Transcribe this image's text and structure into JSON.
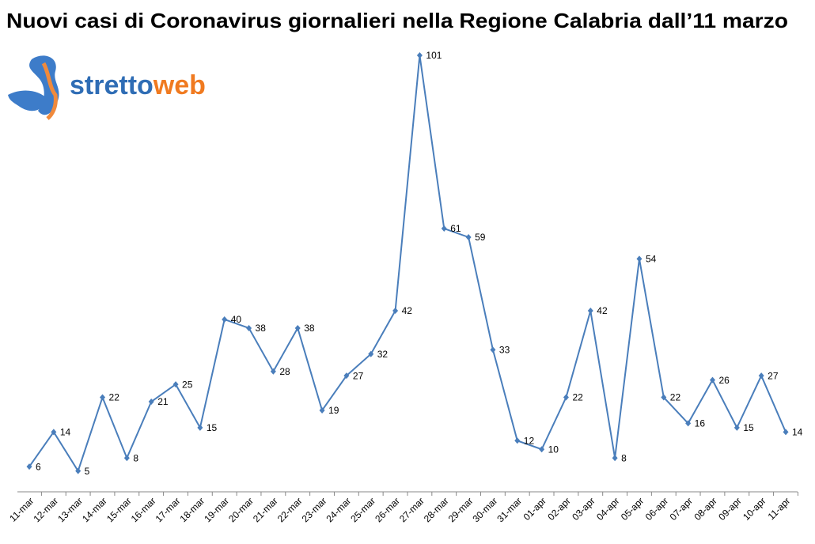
{
  "chart_data": {
    "type": "line",
    "title": "Nuovi casi di Coronavirus giornalieri nella Regione Calabria dall’11 marzo",
    "categories": [
      "11-mar",
      "12-mar",
      "13-mar",
      "14-mar",
      "15-mar",
      "16-mar",
      "17-mar",
      "18-mar",
      "19-mar",
      "20-mar",
      "21-mar",
      "22-mar",
      "23-mar",
      "24-mar",
      "25-mar",
      "26-mar",
      "27-mar",
      "28-mar",
      "29-mar",
      "30-mar",
      "31-mar",
      "01-apr",
      "02-apr",
      "03-apr",
      "04-apr",
      "05-apr",
      "06-apr",
      "07-apr",
      "08-apr",
      "09-apr",
      "10-apr",
      "11-apr"
    ],
    "values": [
      6,
      14,
      5,
      22,
      8,
      21,
      25,
      15,
      40,
      38,
      28,
      38,
      19,
      27,
      32,
      42,
      101,
      61,
      59,
      33,
      12,
      10,
      22,
      42,
      8,
      54,
      22,
      16,
      26,
      15,
      27,
      14
    ],
    "color": "#4a7ebb"
  },
  "logo": {
    "part1": "stretto",
    "part2": "web"
  }
}
